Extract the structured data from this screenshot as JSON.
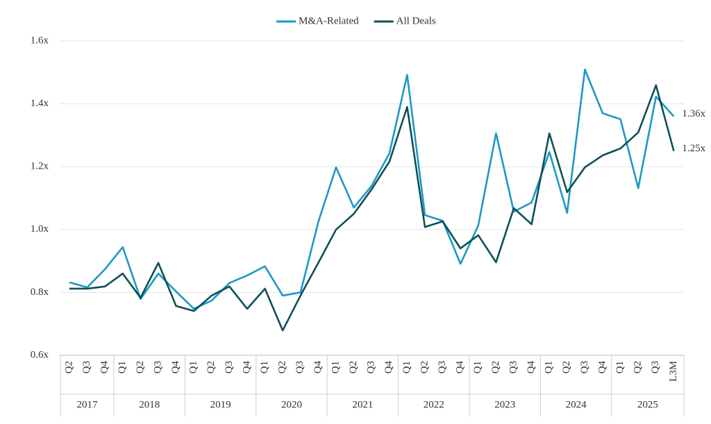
{
  "chart_data": {
    "type": "line",
    "categories": [
      "Q2",
      "Q3",
      "Q4",
      "Q1",
      "Q2",
      "Q3",
      "Q4",
      "Q1",
      "Q2",
      "Q3",
      "Q4",
      "Q1",
      "Q2",
      "Q3",
      "Q4",
      "Q1",
      "Q2",
      "Q3",
      "Q4",
      "Q1",
      "Q2",
      "Q3",
      "Q4",
      "Q1",
      "Q2",
      "Q3",
      "Q4",
      "Q1",
      "Q2",
      "Q3",
      "Q4",
      "Q1",
      "Q2",
      "Q3",
      "L3M"
    ],
    "years": [
      "2017",
      "2017",
      "2017",
      "2018",
      "2018",
      "2018",
      "2018",
      "2019",
      "2019",
      "2019",
      "2019",
      "2020",
      "2020",
      "2020",
      "2020",
      "2021",
      "2021",
      "2021",
      "2021",
      "2022",
      "2022",
      "2022",
      "2022",
      "2023",
      "2023",
      "2023",
      "2023",
      "2024",
      "2024",
      "2024",
      "2024",
      "2025",
      "2025",
      "2025",
      "2025"
    ],
    "series": [
      {
        "name": "M&A-Related",
        "color": "#1b98c4",
        "values": [
          0.832,
          0.816,
          0.874,
          0.944,
          0.779,
          0.86,
          0.803,
          0.748,
          0.774,
          0.83,
          0.854,
          0.883,
          0.79,
          0.8,
          1.024,
          1.198,
          1.07,
          1.139,
          1.242,
          1.492,
          1.046,
          1.028,
          0.891,
          1.013,
          1.306,
          1.057,
          1.086,
          1.247,
          1.053,
          1.509,
          1.37,
          1.351,
          1.132,
          1.423,
          1.36
        ],
        "value_labels": [
          null,
          null,
          null,
          null,
          null,
          null,
          null,
          null,
          null,
          null,
          null,
          null,
          null,
          null,
          null,
          null,
          null,
          null,
          null,
          null,
          null,
          null,
          null,
          null,
          null,
          null,
          null,
          null,
          null,
          null,
          null,
          null,
          null,
          null,
          "1.36x"
        ]
      },
      {
        "name": "All Deals",
        "color": "#0d4f57",
        "values": [
          0.812,
          0.812,
          0.819,
          0.86,
          0.783,
          0.894,
          0.757,
          0.741,
          0.79,
          0.819,
          0.748,
          0.812,
          0.679,
          0.79,
          0.894,
          1.0,
          1.05,
          1.128,
          1.216,
          1.39,
          1.008,
          1.026,
          0.94,
          0.982,
          0.896,
          1.068,
          1.017,
          1.306,
          1.119,
          1.198,
          1.236,
          1.258,
          1.309,
          1.459,
          1.25
        ],
        "value_labels": [
          null,
          null,
          null,
          null,
          null,
          null,
          null,
          null,
          null,
          null,
          null,
          null,
          null,
          null,
          null,
          null,
          null,
          null,
          null,
          null,
          null,
          null,
          null,
          null,
          null,
          null,
          null,
          null,
          null,
          null,
          null,
          null,
          null,
          null,
          "1.25x"
        ]
      }
    ],
    "ylim": [
      0.6,
      1.6
    ],
    "yticks": [
      {
        "value": 0.6,
        "label": "0.6x"
      },
      {
        "value": 0.8,
        "label": "0.8x"
      },
      {
        "value": 1.0,
        "label": "1.0x"
      },
      {
        "value": 1.2,
        "label": "1.2x"
      },
      {
        "value": 1.4,
        "label": "1.4x"
      },
      {
        "value": 1.6,
        "label": "1.6x"
      }
    ],
    "grid": true,
    "legend": "top"
  }
}
